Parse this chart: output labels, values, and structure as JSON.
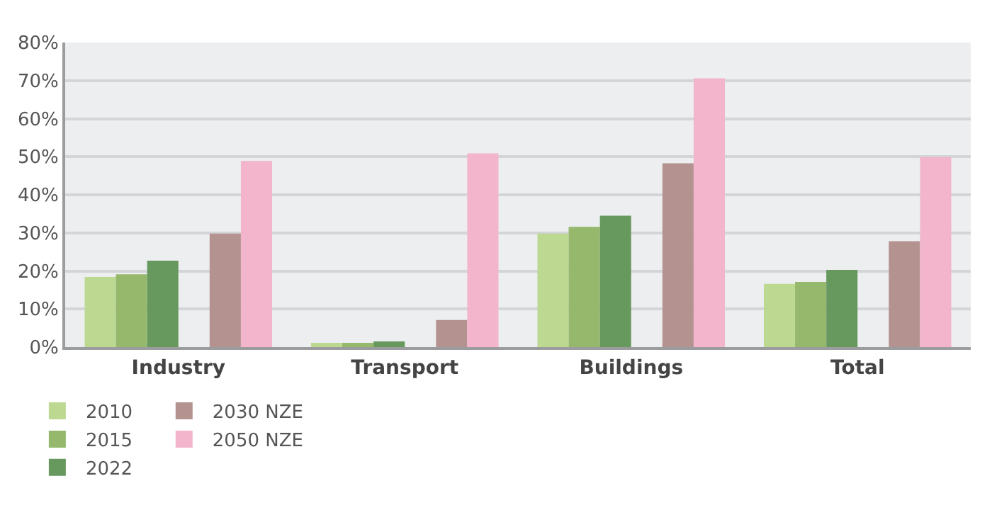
{
  "chart_data": {
    "type": "bar",
    "categories": [
      "Industry",
      "Transport",
      "Buildings",
      "Total"
    ],
    "series": [
      {
        "name": "2010",
        "color": "#bcd891",
        "values": [
          18.4,
          1.1,
          29.8,
          16.6
        ]
      },
      {
        "name": "2015",
        "color": "#95b86d",
        "values": [
          19.1,
          1.1,
          31.6,
          17.1
        ]
      },
      {
        "name": "2022",
        "color": "#67995f",
        "values": [
          22.7,
          1.5,
          34.5,
          20.3
        ]
      },
      {
        "name": "2030 NZE",
        "color": "#b39290",
        "values": [
          29.8,
          7.1,
          48.3,
          27.8
        ]
      },
      {
        "name": "2050 NZE",
        "color": "#f3b5cb",
        "values": [
          48.9,
          50.9,
          70.6,
          49.9
        ]
      }
    ],
    "ylim": [
      0,
      80
    ],
    "yticks": [
      {
        "value": 0,
        "label": "0%"
      },
      {
        "value": 10,
        "label": "10%"
      },
      {
        "value": 20,
        "label": "20%"
      },
      {
        "value": 30,
        "label": "30%"
      },
      {
        "value": 40,
        "label": "40%"
      },
      {
        "value": 50,
        "label": "50%"
      },
      {
        "value": 60,
        "label": "60%"
      },
      {
        "value": 70,
        "label": "70%"
      },
      {
        "value": 80,
        "label": "80%"
      }
    ],
    "grid": "y",
    "legend": "bottom left"
  }
}
